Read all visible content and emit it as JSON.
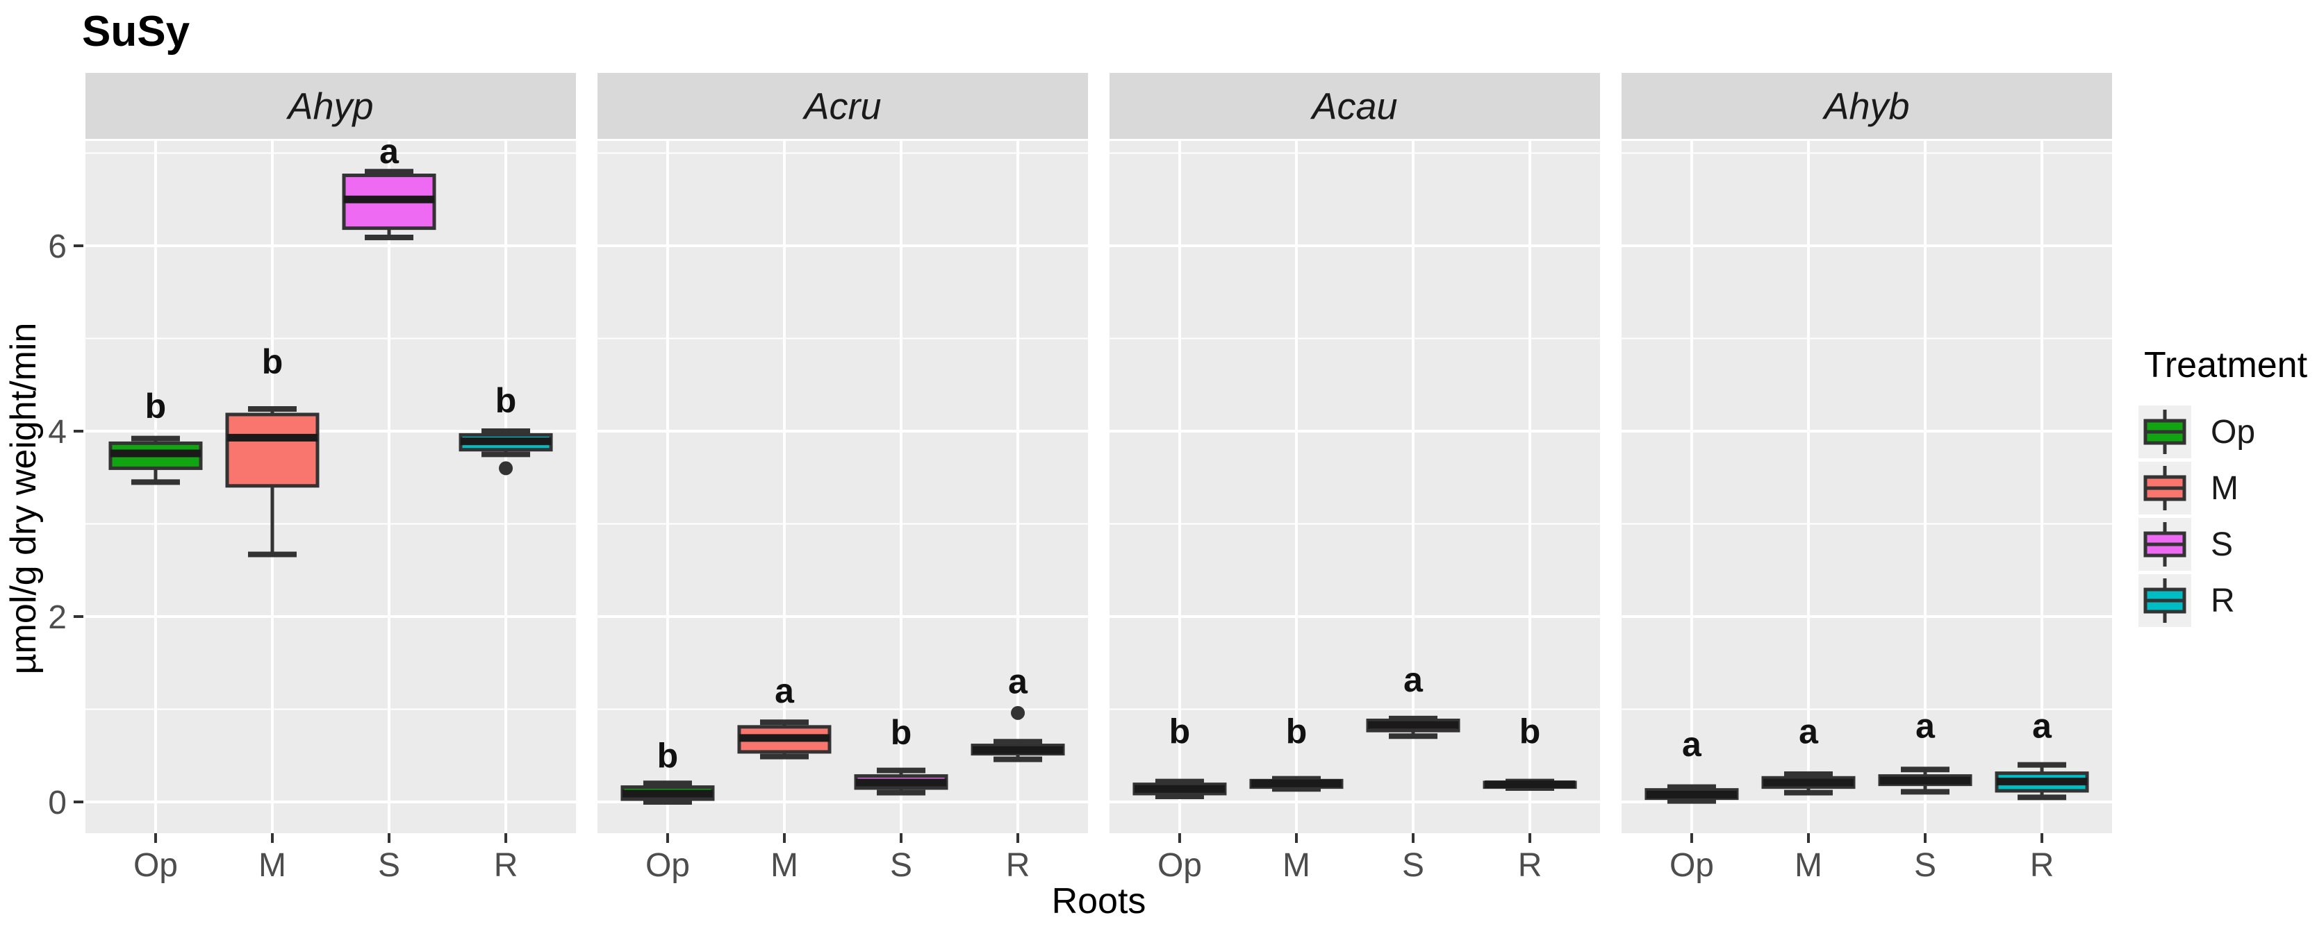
{
  "title": "SuSy",
  "axes": {
    "x_label": "Roots",
    "y_label": "µmol/g dry weight/min"
  },
  "legend": {
    "title": "Treatment",
    "items": [
      {
        "label": "Op",
        "color": "#12A512"
      },
      {
        "label": "M",
        "color": "#F8766D"
      },
      {
        "label": "S",
        "color": "#EE6AF2"
      },
      {
        "label": "R",
        "color": "#00BDC4"
      }
    ]
  },
  "chart_data": {
    "type": "boxplot-faceted",
    "title": "SuSy",
    "xlabel": "Roots",
    "ylabel": "µmol/g dry weight/min",
    "categories": [
      "Op",
      "M",
      "S",
      "R"
    ],
    "y_major_ticks": [
      0,
      2,
      4,
      6
    ],
    "y_minor_ticks": [
      1,
      3,
      5,
      7
    ],
    "ylim": [
      -0.35,
      7.15
    ],
    "grid": true,
    "legend_position": "right",
    "treatment_colors": {
      "Op": "#12A512",
      "M": "#F8766D",
      "S": "#EE6AF2",
      "R": "#00BDC4"
    },
    "facets": [
      {
        "name": "Ahyp",
        "boxes": [
          {
            "treatment": "Op",
            "min": 3.45,
            "q1": 3.6,
            "median": 3.76,
            "q3": 3.87,
            "max": 3.92,
            "outliers": [],
            "sig": "b",
            "label_y": 4.27
          },
          {
            "treatment": "M",
            "min": 2.67,
            "q1": 3.41,
            "median": 3.93,
            "q3": 4.18,
            "max": 4.24,
            "outliers": [],
            "sig": "b",
            "label_y": 4.75
          },
          {
            "treatment": "S",
            "min": 6.09,
            "q1": 6.19,
            "median": 6.5,
            "q3": 6.76,
            "max": 6.8,
            "outliers": [],
            "sig": "a",
            "label_y": 7.02
          },
          {
            "treatment": "R",
            "min": 3.75,
            "q1": 3.8,
            "median": 3.89,
            "q3": 3.96,
            "max": 4.0,
            "outliers": [
              3.6
            ],
            "sig": "b",
            "label_y": 4.33
          }
        ]
      },
      {
        "name": "Acru",
        "boxes": [
          {
            "treatment": "Op",
            "min": 0.0,
            "q1": 0.03,
            "median": 0.09,
            "q3": 0.16,
            "max": 0.2,
            "outliers": [],
            "sig": "b",
            "label_y": 0.5
          },
          {
            "treatment": "M",
            "min": 0.49,
            "q1": 0.54,
            "median": 0.69,
            "q3": 0.81,
            "max": 0.86,
            "outliers": [],
            "sig": "a",
            "label_y": 1.2
          },
          {
            "treatment": "S",
            "min": 0.1,
            "q1": 0.15,
            "median": 0.21,
            "q3": 0.28,
            "max": 0.34,
            "outliers": [],
            "sig": "b",
            "label_y": 0.75
          },
          {
            "treatment": "R",
            "min": 0.46,
            "q1": 0.52,
            "median": 0.56,
            "q3": 0.61,
            "max": 0.65,
            "outliers": [
              0.96
            ],
            "sig": "a",
            "label_y": 1.3
          }
        ]
      },
      {
        "name": "Acau",
        "boxes": [
          {
            "treatment": "Op",
            "min": 0.06,
            "q1": 0.09,
            "median": 0.14,
            "q3": 0.19,
            "max": 0.22,
            "outliers": [],
            "sig": "b",
            "label_y": 0.76
          },
          {
            "treatment": "M",
            "min": 0.14,
            "q1": 0.16,
            "median": 0.2,
            "q3": 0.23,
            "max": 0.25,
            "outliers": [],
            "sig": "b",
            "label_y": 0.76
          },
          {
            "treatment": "S",
            "min": 0.71,
            "q1": 0.77,
            "median": 0.83,
            "q3": 0.88,
            "max": 0.9,
            "outliers": [],
            "sig": "a",
            "label_y": 1.32
          },
          {
            "treatment": "R",
            "min": 0.15,
            "q1": 0.16,
            "median": 0.19,
            "q3": 0.21,
            "max": 0.22,
            "outliers": [],
            "sig": "b",
            "label_y": 0.76
          }
        ]
      },
      {
        "name": "Ahyb",
        "boxes": [
          {
            "treatment": "Op",
            "min": 0.01,
            "q1": 0.04,
            "median": 0.08,
            "q3": 0.13,
            "max": 0.16,
            "outliers": [],
            "sig": "a",
            "label_y": 0.62
          },
          {
            "treatment": "M",
            "min": 0.1,
            "q1": 0.16,
            "median": 0.21,
            "q3": 0.26,
            "max": 0.3,
            "outliers": [],
            "sig": "a",
            "label_y": 0.76
          },
          {
            "treatment": "S",
            "min": 0.11,
            "q1": 0.19,
            "median": 0.23,
            "q3": 0.28,
            "max": 0.35,
            "outliers": [],
            "sig": "a",
            "label_y": 0.82
          },
          {
            "treatment": "R",
            "min": 0.05,
            "q1": 0.12,
            "median": 0.22,
            "q3": 0.31,
            "max": 0.4,
            "outliers": [],
            "sig": "a",
            "label_y": 0.82
          }
        ]
      }
    ]
  },
  "style": {
    "panel_bg": "#EBEBEB",
    "strip_bg": "#D9D9D9",
    "grid_color": "#FFFFFF",
    "box_stroke": "#333333",
    "median_color": "#1A1A1A",
    "tick_label_color": "#4D4D4D",
    "key_bg": "#EFEFEF"
  }
}
